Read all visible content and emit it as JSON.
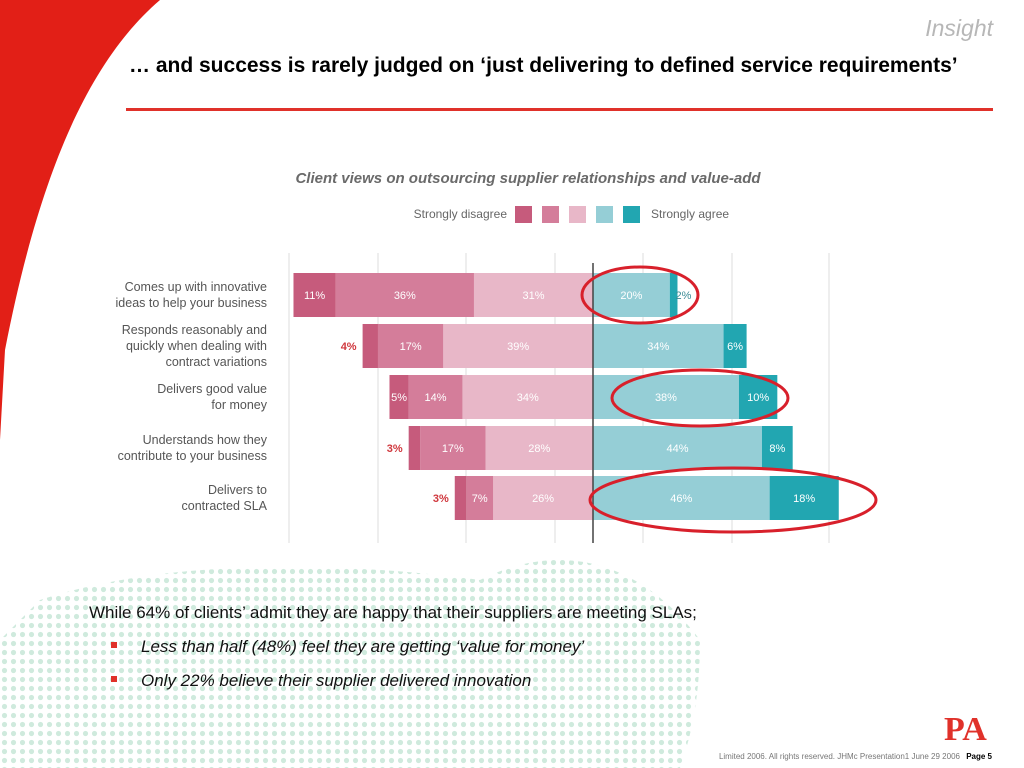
{
  "header": {
    "section_label": "Insight",
    "title": "… and success is rarely judged on ‘just delivering to defined service requirements’"
  },
  "colors": {
    "accent": "#e0312a",
    "strongly_disagree": "#c65b7c",
    "disagree": "#d47d9a",
    "slightly_disagree": "#e8b7c8",
    "agree": "#95ced6",
    "strongly_agree": "#22a6b1"
  },
  "chart_data": {
    "type": "bar",
    "orientation": "horizontal-diverging",
    "title": "Client views on outsourcing supplier relationships and value-add",
    "legend": {
      "left_label": "Strongly disagree",
      "right_label": "Strongly agree",
      "placement": "top"
    },
    "categories": [
      [
        "Comes up with innovative",
        "ideas to help your business"
      ],
      [
        "Responds reasonably and",
        "quickly when dealing with",
        "contract variations"
      ],
      [
        "Delivers good value",
        "for money"
      ],
      [
        "Understands how they",
        "contribute to your business"
      ],
      [
        "Delivers to",
        "contracted SLA"
      ]
    ],
    "series": [
      {
        "level": "strongly_disagree",
        "values": [
          11,
          4,
          5,
          3,
          3
        ]
      },
      {
        "level": "disagree",
        "values": [
          36,
          17,
          14,
          17,
          7
        ]
      },
      {
        "level": "slightly_disagree",
        "values": [
          31,
          39,
          34,
          28,
          26
        ]
      },
      {
        "level": "agree",
        "values": [
          20,
          34,
          38,
          44,
          46
        ]
      },
      {
        "level": "strongly_agree",
        "values": [
          2,
          6,
          10,
          8,
          18
        ]
      }
    ],
    "highlighted": [
      0,
      2,
      4
    ],
    "grid": true
  },
  "notes": {
    "lead": "While 64% of clients’ admit they are happy that their suppliers are meeting SLAs;",
    "bullets": [
      "Less than half (48%) feel they are getting ‘value for money’",
      "Only 22% believe their supplier delivered innovation"
    ]
  },
  "footer": {
    "copyright": "Limited 2006. All rights reserved.  JHMc  Presentation1  June 29 2006",
    "page": "Page 5"
  },
  "logo": {
    "text": "PA"
  }
}
